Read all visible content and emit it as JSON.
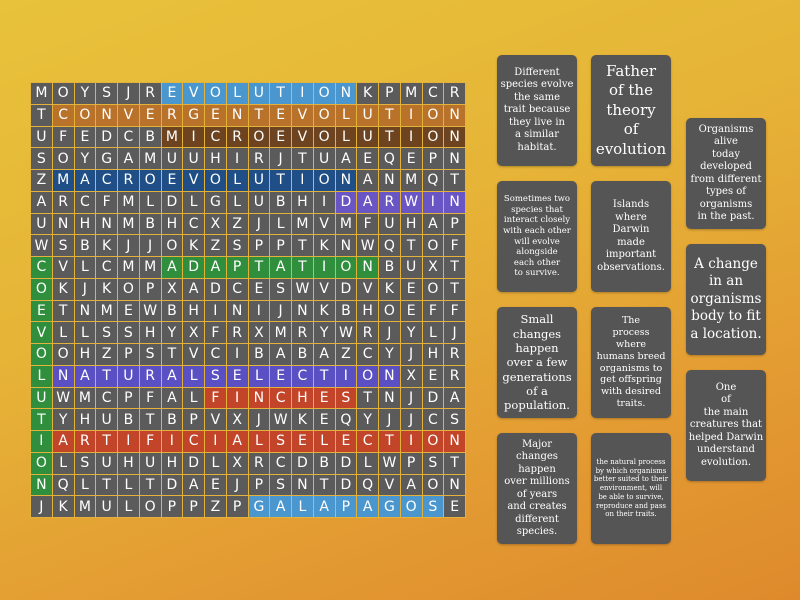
{
  "grid": {
    "rows": [
      "MOYSJREVOLUTIONKPMCR",
      "TCONVERGENTEVOLUTION",
      "UFEDCBMICROEVOLUTION",
      "SOYGAMUUHIRJTUAEQEPN",
      "ZMACROEVOLUTIONANMQT",
      "ARCFMLDLGLUBHIDARWIN",
      "UNHNMBHCXZJLMVMFUHAP",
      "WSBKJJOKZSPPTKNWQTOF",
      "CVLCMMADAPTATIONBUXT",
      "OKJKOPXADCESWVDVKEOT",
      "ETNMEWBHINIJNKBHOEFF",
      "VLLSSHYXFRXMRYWRJYLJ",
      "OOHZPSTVCIBABAZCYJHR",
      "LNATURALSELECTIONXER",
      "UWMCPFALFINCHESTNJDA",
      "TYHUBTBPVXJWKEQYJJCS",
      "IARTIFICIALSELECTION",
      "OLSUHUHDLXRCDBDLWPST",
      "NQLTLTDAEJPSNTDQVAON",
      "JKMULOPPZPGALAPAGOSE"
    ],
    "found_words": [
      {
        "word": "EVOLUTION",
        "row": 0,
        "col": 6,
        "dir": "h",
        "color": "#4a97cf"
      },
      {
        "word": "CONVERGENTEVOLUTION",
        "row": 1,
        "col": 1,
        "dir": "h",
        "color": "#b8722a"
      },
      {
        "word": "MICROEVOLUTION",
        "row": 2,
        "col": 6,
        "dir": "h",
        "color": "#6e4420"
      },
      {
        "word": "MACROEVOLUTION",
        "row": 4,
        "col": 1,
        "dir": "h",
        "color": "#1f4f86"
      },
      {
        "word": "DARWIN",
        "row": 5,
        "col": 14,
        "dir": "h",
        "color": "#6a55c5"
      },
      {
        "word": "ADAPTATION",
        "row": 8,
        "col": 6,
        "dir": "h",
        "color": "#2f8f3c"
      },
      {
        "word": "COEVOLUTION",
        "row": 8,
        "col": 0,
        "dir": "v",
        "color": "#2f8f3c"
      },
      {
        "word": "NATURALSELECTION",
        "row": 13,
        "col": 1,
        "dir": "h",
        "color": "#5b4fc4"
      },
      {
        "word": "FINCHES",
        "row": 14,
        "col": 8,
        "dir": "h",
        "color": "#c2452a"
      },
      {
        "word": "ARTIFICIALSELECTION",
        "row": 16,
        "col": 1,
        "dir": "h",
        "color": "#c2452a"
      },
      {
        "word": "GALAPAGOS",
        "row": 19,
        "col": 10,
        "dir": "h",
        "color": "#4a97cf"
      }
    ]
  },
  "clues": [
    {
      "text": "Different\nspecies evolve\nthe same\ntrait because\nthey live in\na similar\nhabitat."
    },
    {
      "text": "Father\nof the\ntheory\nof\nevolution"
    },
    {
      "text": "Organisms\nalive\ntoday\ndeveloped\nfrom different\ntypes of\norganisms\nin the past."
    },
    {
      "text": "Sometimes two\nspecies that\ninteract closely\nwith each other\nwill evolve\nalongside\neach other\nto survive."
    },
    {
      "text": "Islands\nwhere\nDarwin\nmade\nimportant\nobservations."
    },
    {
      "text": "A change\nin an\norganisms\nbody to fit\na location."
    },
    {
      "text": "Small\nchanges\nhappen\nover a few\ngenerations\nof a\npopulation."
    },
    {
      "text": "The\nprocess\nwhere\nhumans breed\norganisms to\nget offspring\nwith desired\ntraits."
    },
    {
      "text": "One\nof\nthe main\ncreatures that\nhelped Darwin\nunderstand\nevolution."
    },
    {
      "text": "Major\nchanges\nhappen\nover millions\nof years\nand creates\ndifferent\nspecies."
    },
    {
      "text": "the natural process\nby which organisms\nbetter suited to their\nenvironment, will\nbe able to survive,\nreproduce and pass\non their traits."
    }
  ]
}
